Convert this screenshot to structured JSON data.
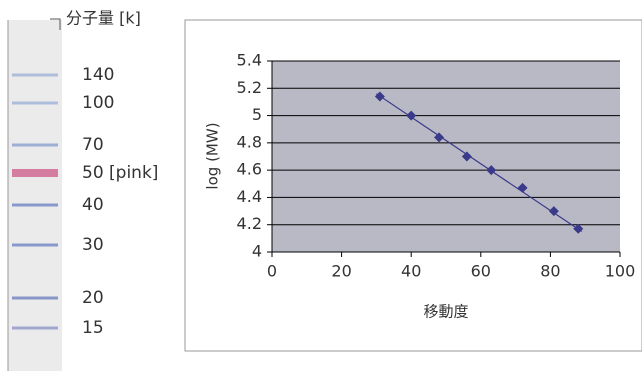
{
  "ladder": {
    "title": "分子量 [k]",
    "labels": [
      "140",
      "100",
      "70",
      "50 [pink]",
      "40",
      "30",
      "20",
      "15"
    ]
  },
  "chart_data": {
    "type": "scatter",
    "y_label": "log (MW)",
    "x_label": "移動度",
    "x": [
      31,
      40,
      48,
      56,
      63,
      72,
      81,
      88
    ],
    "values": [
      5.14,
      5.0,
      4.84,
      4.7,
      4.6,
      4.47,
      4.3,
      4.17
    ],
    "color": "#3a3a8a",
    "trendline": {
      "x": [
        30,
        89
      ],
      "values": [
        5.16,
        4.15
      ]
    },
    "xlim": [
      0,
      100
    ],
    "xticks": [
      0,
      20,
      40,
      60,
      80,
      100
    ],
    "ylim": [
      4,
      5.4
    ],
    "yticks": [
      4,
      4.2,
      4.4,
      4.6,
      4.8,
      5,
      5.2,
      5.4
    ],
    "grid": true
  }
}
